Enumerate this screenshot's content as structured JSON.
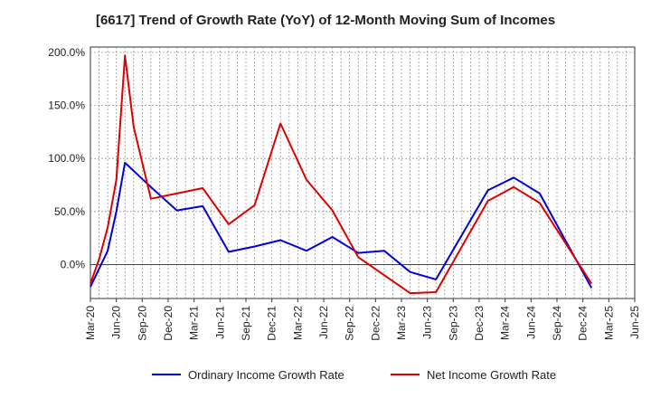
{
  "chart_data": {
    "type": "line",
    "title": "[6617]  Trend of Growth Rate (YoY) of 12-Month Moving Sum of Incomes",
    "xlabel": "",
    "ylabel": "",
    "ylim": [
      -32,
      205
    ],
    "y_ticks": [
      {
        "value": 200,
        "label": "200.0%"
      },
      {
        "value": 150,
        "label": "150.0%"
      },
      {
        "value": 100,
        "label": "100.0%"
      },
      {
        "value": 50,
        "label": "50.0%"
      },
      {
        "value": 0,
        "label": "0.0%"
      }
    ],
    "x_tick_labels": [
      "Mar-20",
      "Jun-20",
      "Sep-20",
      "Dec-20",
      "Mar-21",
      "Jun-21",
      "Sep-21",
      "Dec-21",
      "Mar-22",
      "Jun-22",
      "Sep-22",
      "Dec-22",
      "Mar-23",
      "Jun-23",
      "Sep-23",
      "Dec-23",
      "Mar-24",
      "Jun-24",
      "Sep-24",
      "Dec-24",
      "Mar-25",
      "Jun-25"
    ],
    "x": [
      "2020-03",
      "2020-04",
      "2020-05",
      "2020-06",
      "2020-07",
      "2020-08",
      "2020-09",
      "2020-10",
      "2020-11",
      "2020-12",
      "2021-01",
      "2021-02",
      "2021-03",
      "2021-04",
      "2021-05",
      "2021-06",
      "2021-07",
      "2021-08",
      "2021-09",
      "2021-10",
      "2021-11",
      "2021-12",
      "2022-01",
      "2022-02",
      "2022-03",
      "2022-04",
      "2022-05",
      "2022-06",
      "2022-07",
      "2022-08",
      "2022-09",
      "2022-10",
      "2022-11",
      "2022-12",
      "2023-01",
      "2023-02",
      "2023-03",
      "2023-04",
      "2023-05",
      "2023-06",
      "2023-07",
      "2023-08",
      "2023-09",
      "2023-10",
      "2023-11",
      "2023-12",
      "2024-01",
      "2024-02",
      "2024-03",
      "2024-04",
      "2024-05",
      "2024-06",
      "2024-07",
      "2024-08",
      "2024-09",
      "2024-10",
      "2024-11",
      "2024-12",
      "2025-01",
      "2025-02",
      "2025-03"
    ],
    "series": [
      {
        "name": "Ordinary Income Growth Rate",
        "color": "#0000dd",
        "values": [
          -21,
          -4,
          13,
          50,
          96,
          null,
          null,
          73,
          null,
          null,
          51,
          null,
          null,
          55,
          null,
          null,
          12,
          null,
          null,
          17,
          null,
          null,
          23,
          null,
          null,
          13,
          null,
          null,
          26,
          null,
          null,
          11,
          null,
          null,
          13,
          null,
          null,
          -7,
          null,
          null,
          -14,
          null,
          null,
          null,
          null,
          null,
          70,
          null,
          null,
          82,
          null,
          null,
          67,
          null,
          null,
          null,
          null,
          null,
          -22,
          null,
          null
        ]
      },
      {
        "name": "Net Income Growth Rate",
        "color": "#dd0000",
        "values": [
          -18,
          5,
          35,
          80,
          197,
          130,
          null,
          62,
          null,
          null,
          67,
          null,
          null,
          72,
          null,
          null,
          38,
          null,
          null,
          56,
          null,
          null,
          133,
          null,
          null,
          80,
          null,
          null,
          51,
          null,
          null,
          7,
          null,
          null,
          -10,
          null,
          null,
          -27,
          null,
          null,
          -26,
          null,
          null,
          null,
          null,
          null,
          60,
          null,
          null,
          73,
          null,
          null,
          58,
          null,
          null,
          null,
          null,
          null,
          -18,
          null,
          null
        ]
      }
    ],
    "legend_position": "bottom",
    "grid": true
  }
}
